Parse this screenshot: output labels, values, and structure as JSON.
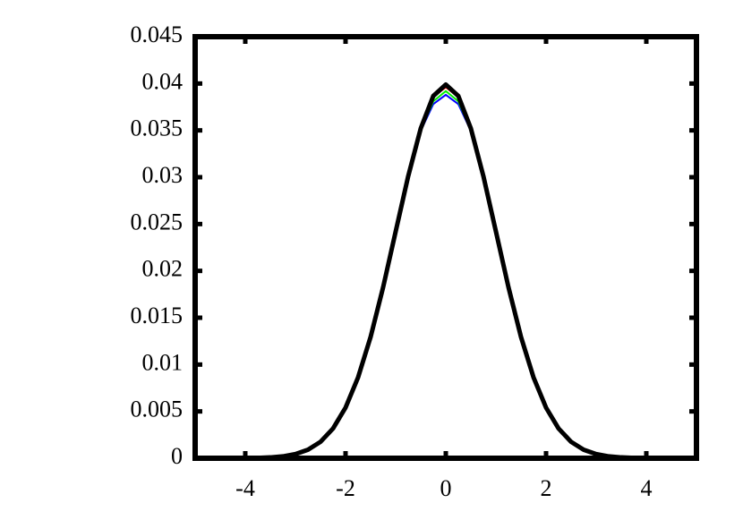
{
  "chart_data": {
    "type": "line",
    "x": [
      -5,
      -4.75,
      -4.5,
      -4.25,
      -4,
      -3.75,
      -3.5,
      -3.25,
      -3,
      -2.75,
      -2.5,
      -2.25,
      -2,
      -1.75,
      -1.5,
      -1.25,
      -1,
      -0.75,
      -0.5,
      -0.25,
      0,
      0.25,
      0.5,
      0.75,
      1,
      1.25,
      1.5,
      1.75,
      2,
      2.25,
      2.5,
      2.75,
      3,
      3.25,
      3.5,
      3.75,
      4,
      4.25,
      4.5,
      4.75,
      5
    ],
    "series": [
      {
        "color": "#ff0000",
        "values": [
          0,
          0,
          0,
          0,
          1e-05,
          4e-05,
          9e-05,
          0.0002,
          0.00044,
          0.00091,
          0.00175,
          0.00317,
          0.0054,
          0.00863,
          0.01295,
          0.01826,
          0.0242,
          0.03011,
          0.03515,
          0.03855,
          0.0396,
          0.03855,
          0.03515,
          0.03011,
          0.0242,
          0.01826,
          0.01295,
          0.00863,
          0.0054,
          0.00317,
          0.00175,
          0.00091,
          0.00044,
          0.0002,
          9e-05,
          4e-05,
          1e-05,
          0,
          0,
          0,
          0
        ]
      },
      {
        "color": "#0000ff",
        "values": [
          0,
          0,
          0,
          0,
          1e-05,
          4e-05,
          9e-05,
          0.0002,
          0.00044,
          0.00091,
          0.00175,
          0.00317,
          0.0054,
          0.00863,
          0.01295,
          0.01826,
          0.0242,
          0.03005,
          0.03495,
          0.0378,
          0.0388,
          0.0378,
          0.03495,
          0.03005,
          0.0242,
          0.01826,
          0.01295,
          0.00863,
          0.0054,
          0.00317,
          0.00175,
          0.00091,
          0.00044,
          0.0002,
          9e-05,
          4e-05,
          1e-05,
          0,
          0,
          0,
          0
        ]
      },
      {
        "color": "#00ee00",
        "values": [
          0,
          0,
          0,
          0,
          1e-05,
          4e-05,
          9e-05,
          0.0002,
          0.00044,
          0.00091,
          0.00175,
          0.00317,
          0.0054,
          0.00863,
          0.01295,
          0.01826,
          0.0242,
          0.03015,
          0.035,
          0.0381,
          0.0392,
          0.0381,
          0.035,
          0.03025,
          0.02445,
          0.0186,
          0.0133,
          0.0089,
          0.0056,
          0.0033,
          0.0018,
          0.00095,
          0.00046,
          0.00021,
          9e-05,
          4e-05,
          1e-05,
          0,
          0,
          0,
          0
        ]
      },
      {
        "color": "#000000",
        "values": [
          0,
          0,
          0,
          0,
          1e-05,
          4e-05,
          9e-05,
          0.0002,
          0.00044,
          0.00091,
          0.00175,
          0.00317,
          0.0054,
          0.00863,
          0.01295,
          0.01826,
          0.0242,
          0.03011,
          0.03521,
          0.03867,
          0.03989,
          0.03867,
          0.03521,
          0.03011,
          0.0242,
          0.01826,
          0.01295,
          0.00863,
          0.0054,
          0.00317,
          0.00175,
          0.00091,
          0.00044,
          0.0002,
          9e-05,
          4e-05,
          1e-05,
          0,
          0,
          0,
          0
        ]
      }
    ],
    "xlim": [
      -5,
      5
    ],
    "xticks": [
      -4,
      -2,
      0,
      2,
      4
    ],
    "ylim": [
      0,
      0.045
    ],
    "yticks": [
      0,
      0.005,
      0.01,
      0.015,
      0.02,
      0.025,
      0.03,
      0.035,
      0.04,
      0.045
    ],
    "grid": false
  }
}
